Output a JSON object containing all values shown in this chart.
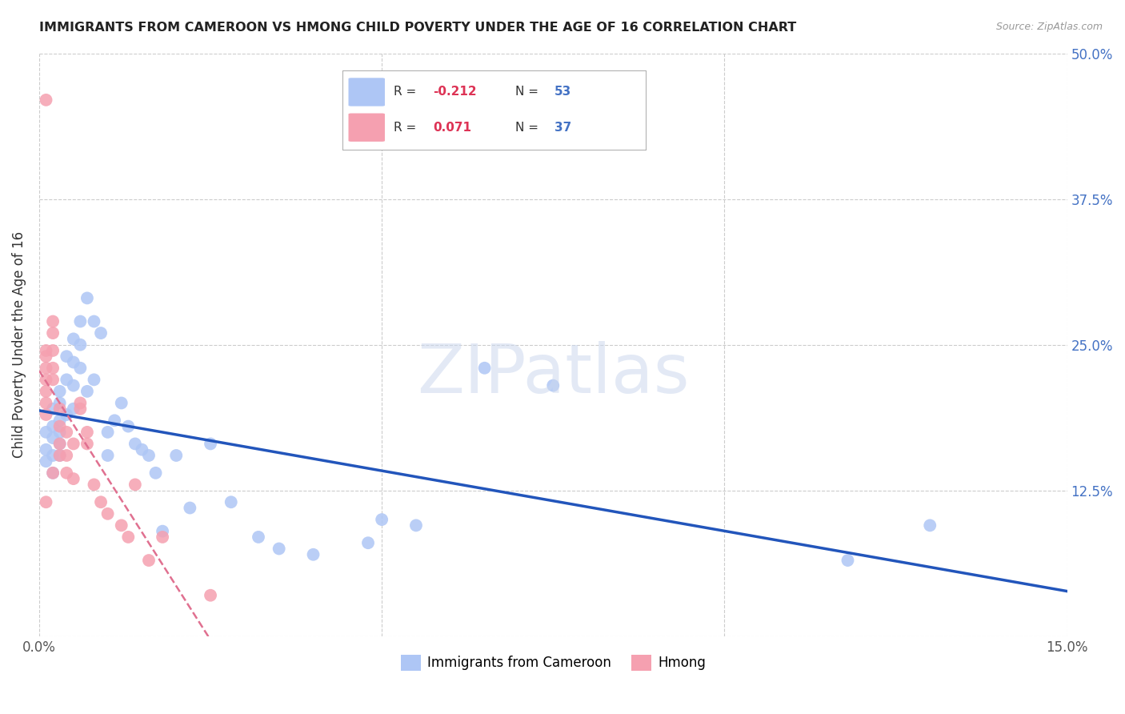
{
  "title": "IMMIGRANTS FROM CAMEROON VS HMONG CHILD POVERTY UNDER THE AGE OF 16 CORRELATION CHART",
  "source": "Source: ZipAtlas.com",
  "ylabel": "Child Poverty Under the Age of 16",
  "xlim": [
    0.0,
    0.15
  ],
  "ylim": [
    0.0,
    0.5
  ],
  "grid_color": "#cccccc",
  "background_color": "#ffffff",
  "cameroon_color": "#aec6f5",
  "hmong_color": "#f5a0b0",
  "cameroon_line_color": "#2255bb",
  "hmong_line_color": "#e07090",
  "legend_R_cameroon": "-0.212",
  "legend_N_cameroon": "53",
  "legend_R_hmong": "0.071",
  "legend_N_hmong": "37",
  "watermark": "ZIPatlas",
  "cameroon_x": [
    0.001,
    0.001,
    0.001,
    0.002,
    0.002,
    0.002,
    0.002,
    0.002,
    0.003,
    0.003,
    0.003,
    0.003,
    0.003,
    0.003,
    0.004,
    0.004,
    0.004,
    0.005,
    0.005,
    0.005,
    0.005,
    0.006,
    0.006,
    0.006,
    0.007,
    0.007,
    0.008,
    0.008,
    0.009,
    0.01,
    0.01,
    0.011,
    0.012,
    0.013,
    0.014,
    0.015,
    0.016,
    0.017,
    0.018,
    0.02,
    0.022,
    0.025,
    0.028,
    0.032,
    0.035,
    0.04,
    0.048,
    0.05,
    0.055,
    0.065,
    0.075,
    0.118,
    0.13
  ],
  "cameroon_y": [
    0.175,
    0.16,
    0.15,
    0.195,
    0.18,
    0.17,
    0.155,
    0.14,
    0.21,
    0.2,
    0.185,
    0.175,
    0.165,
    0.155,
    0.24,
    0.22,
    0.19,
    0.255,
    0.235,
    0.215,
    0.195,
    0.27,
    0.25,
    0.23,
    0.29,
    0.21,
    0.27,
    0.22,
    0.26,
    0.175,
    0.155,
    0.185,
    0.2,
    0.18,
    0.165,
    0.16,
    0.155,
    0.14,
    0.09,
    0.155,
    0.11,
    0.165,
    0.115,
    0.085,
    0.075,
    0.07,
    0.08,
    0.1,
    0.095,
    0.23,
    0.215,
    0.065,
    0.095
  ],
  "hmong_x": [
    0.001,
    0.001,
    0.001,
    0.001,
    0.001,
    0.001,
    0.001,
    0.001,
    0.001,
    0.002,
    0.002,
    0.002,
    0.002,
    0.002,
    0.002,
    0.003,
    0.003,
    0.003,
    0.003,
    0.004,
    0.004,
    0.004,
    0.005,
    0.005,
    0.006,
    0.006,
    0.007,
    0.007,
    0.008,
    0.009,
    0.01,
    0.012,
    0.013,
    0.014,
    0.016,
    0.018,
    0.025
  ],
  "hmong_y": [
    0.46,
    0.245,
    0.24,
    0.23,
    0.22,
    0.21,
    0.2,
    0.19,
    0.115,
    0.27,
    0.26,
    0.245,
    0.23,
    0.22,
    0.14,
    0.195,
    0.18,
    0.165,
    0.155,
    0.175,
    0.155,
    0.14,
    0.165,
    0.135,
    0.2,
    0.195,
    0.175,
    0.165,
    0.13,
    0.115,
    0.105,
    0.095,
    0.085,
    0.13,
    0.065,
    0.085,
    0.035
  ]
}
